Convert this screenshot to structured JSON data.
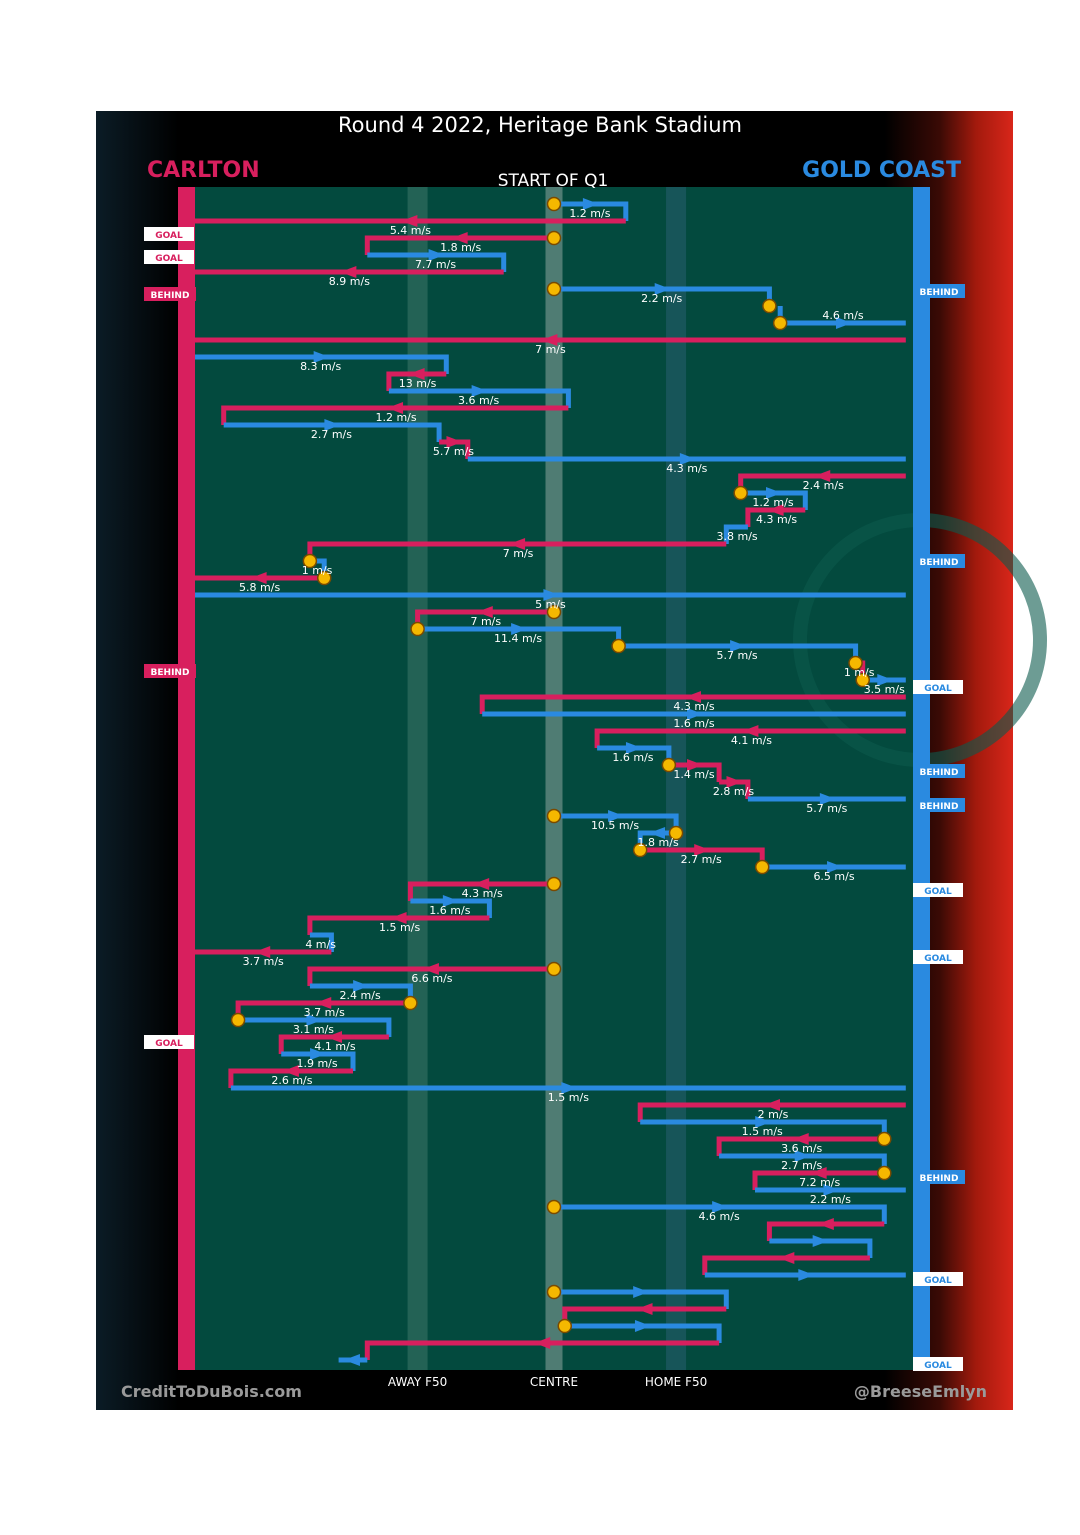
{
  "title": "Round 4 2022, Heritage Bank Stadium",
  "teams": {
    "left": "CARLTON",
    "right": "GOLD COAST"
  },
  "colors": {
    "left": "#d81f5e",
    "right": "#2a8ae0",
    "field": "#034a3e",
    "marker": "#f5b800"
  },
  "credits": {
    "left": "CreditToDuBois.com",
    "right": "@BreeseEmlyn"
  },
  "chart_data": {
    "type": "line",
    "title": "START OF Q1",
    "xlabel": "",
    "ylabel": "",
    "x_range": [
      0,
      100
    ],
    "x_ticks": [
      {
        "x": 31,
        "label": "AWAY F50"
      },
      {
        "x": 50,
        "label": "CENTRE"
      },
      {
        "x": 67,
        "label": "HOME F50"
      }
    ],
    "events": [
      {
        "x": 30,
        "label": "GOAL",
        "team": "left"
      },
      {
        "x": 53,
        "label": "GOAL",
        "team": "left"
      },
      {
        "x": 87,
        "label": "BEHIND",
        "team": "right"
      },
      {
        "x": 90,
        "label": "BEHIND",
        "team": "left"
      },
      {
        "x": 357,
        "label": "BEHIND",
        "team": "right"
      },
      {
        "x": 467,
        "label": "BEHIND",
        "team": "left"
      },
      {
        "x": 483,
        "label": "GOAL",
        "team": "right"
      },
      {
        "x": 567,
        "label": "BEHIND",
        "team": "right"
      },
      {
        "x": 601,
        "label": "BEHIND",
        "team": "right"
      },
      {
        "x": 686,
        "label": "GOAL",
        "team": "right"
      },
      {
        "x": 753,
        "label": "GOAL",
        "team": "right"
      },
      {
        "x": 838,
        "label": "GOAL",
        "team": "left"
      },
      {
        "x": 973,
        "label": "BEHIND",
        "team": "right"
      },
      {
        "x": 1075,
        "label": "GOAL",
        "team": "right"
      },
      {
        "x": 1160,
        "label": "GOAL",
        "team": "right"
      }
    ],
    "chains": [
      {
        "team": "right",
        "steps": [
          [
            50,
            0
          ],
          [
            60,
            0
          ],
          [
            60,
            17
          ],
          [
            60,
            17
          ]
        ]
      },
      {
        "team": "left",
        "steps": [
          [
            60,
            17
          ],
          [
            0,
            17
          ]
        ]
      },
      {
        "team": "left",
        "steps": [
          [
            50,
            34
          ],
          [
            24,
            34
          ],
          [
            24,
            51
          ]
        ]
      },
      {
        "team": "right",
        "steps": [
          [
            24,
            51
          ],
          [
            43,
            51
          ],
          [
            43,
            68
          ]
        ]
      },
      {
        "team": "left",
        "steps": [
          [
            43,
            68
          ],
          [
            0,
            68
          ]
        ]
      },
      {
        "team": "right",
        "steps": [
          [
            50,
            85
          ],
          [
            80,
            85
          ],
          [
            80,
            102
          ]
        ]
      },
      {
        "team": "right",
        "steps": [
          [
            81.5,
            102
          ],
          [
            81.5,
            119
          ],
          [
            99,
            119
          ]
        ]
      },
      {
        "team": "left",
        "steps": [
          [
            99,
            136
          ],
          [
            0,
            136
          ]
        ]
      },
      {
        "team": "right",
        "steps": [
          [
            0,
            153
          ],
          [
            35,
            153
          ],
          [
            35,
            170
          ]
        ]
      },
      {
        "team": "left",
        "steps": [
          [
            35,
            170
          ],
          [
            27,
            170
          ],
          [
            27,
            187
          ]
        ]
      },
      {
        "team": "right",
        "steps": [
          [
            27,
            187
          ],
          [
            52,
            187
          ],
          [
            52,
            204
          ]
        ]
      },
      {
        "team": "left",
        "steps": [
          [
            52,
            204
          ],
          [
            4,
            204
          ],
          [
            4,
            221
          ]
        ]
      },
      {
        "team": "right",
        "steps": [
          [
            4,
            221
          ],
          [
            34,
            221
          ],
          [
            34,
            238
          ]
        ]
      },
      {
        "team": "left",
        "steps": [
          [
            34,
            238
          ],
          [
            38,
            238
          ],
          [
            38,
            255
          ]
        ]
      },
      {
        "team": "right",
        "steps": [
          [
            38,
            255
          ],
          [
            99,
            255
          ]
        ]
      },
      {
        "team": "left",
        "steps": [
          [
            99,
            272
          ],
          [
            76,
            272
          ],
          [
            76,
            289
          ]
        ]
      },
      {
        "team": "right",
        "steps": [
          [
            76,
            289
          ],
          [
            85,
            289
          ],
          [
            85,
            306
          ]
        ]
      },
      {
        "team": "left",
        "steps": [
          [
            85,
            306
          ],
          [
            77,
            306
          ],
          [
            77,
            323
          ]
        ]
      },
      {
        "team": "right",
        "steps": [
          [
            77,
            323
          ],
          [
            74,
            323
          ],
          [
            74,
            340
          ]
        ]
      },
      {
        "team": "left",
        "steps": [
          [
            74,
            340
          ],
          [
            16,
            340
          ],
          [
            16,
            357
          ]
        ]
      },
      {
        "team": "right",
        "steps": [
          [
            16,
            357
          ],
          [
            18,
            357
          ],
          [
            18,
            374
          ]
        ]
      },
      {
        "team": "left",
        "steps": [
          [
            18,
            374
          ],
          [
            0,
            374
          ]
        ]
      },
      {
        "team": "right",
        "steps": [
          [
            0,
            391
          ],
          [
            99,
            391
          ]
        ]
      },
      {
        "team": "left",
        "steps": [
          [
            50,
            408
          ],
          [
            31,
            408
          ],
          [
            31,
            425
          ]
        ]
      },
      {
        "team": "right",
        "steps": [
          [
            31,
            425
          ],
          [
            59,
            425
          ],
          [
            59,
            442
          ]
        ]
      },
      {
        "team": "right",
        "steps": [
          [
            59,
            442
          ],
          [
            92,
            442
          ],
          [
            92,
            459
          ]
        ]
      },
      {
        "team": "left",
        "steps": [
          [
            92,
            459
          ],
          [
            93,
            459
          ],
          [
            93,
            476
          ]
        ]
      },
      {
        "team": "right",
        "steps": [
          [
            93,
            476
          ],
          [
            99,
            476
          ]
        ]
      },
      {
        "team": "left",
        "steps": [
          [
            99,
            493
          ],
          [
            40,
            493
          ],
          [
            40,
            510
          ]
        ]
      },
      {
        "team": "right",
        "steps": [
          [
            40,
            510
          ],
          [
            99,
            510
          ]
        ]
      },
      {
        "team": "left",
        "steps": [
          [
            99,
            527
          ],
          [
            56,
            527
          ],
          [
            56,
            544
          ]
        ]
      },
      {
        "team": "right",
        "steps": [
          [
            56,
            544
          ],
          [
            66,
            544
          ],
          [
            66,
            561
          ]
        ]
      },
      {
        "team": "left",
        "steps": [
          [
            66,
            561
          ],
          [
            73,
            561
          ],
          [
            73,
            578
          ]
        ]
      },
      {
        "team": "left",
        "steps": [
          [
            73,
            578
          ],
          [
            77,
            578
          ],
          [
            77,
            595
          ]
        ]
      },
      {
        "team": "right",
        "steps": [
          [
            77,
            595
          ],
          [
            99,
            595
          ]
        ]
      },
      {
        "team": "right",
        "steps": [
          [
            50,
            612
          ],
          [
            67,
            612
          ],
          [
            67,
            629
          ]
        ]
      },
      {
        "team": "right",
        "steps": [
          [
            67,
            629
          ],
          [
            62,
            629
          ],
          [
            62,
            646
          ]
        ]
      },
      {
        "team": "left",
        "steps": [
          [
            62,
            646
          ],
          [
            79,
            646
          ],
          [
            79,
            663
          ]
        ]
      },
      {
        "team": "right",
        "steps": [
          [
            79,
            663
          ],
          [
            99,
            663
          ]
        ]
      },
      {
        "team": "left",
        "steps": [
          [
            50,
            680
          ],
          [
            30,
            680
          ],
          [
            30,
            697
          ]
        ]
      },
      {
        "team": "right",
        "steps": [
          [
            30,
            697
          ],
          [
            41,
            697
          ],
          [
            41,
            714
          ]
        ]
      },
      {
        "team": "left",
        "steps": [
          [
            41,
            714
          ],
          [
            16,
            714
          ],
          [
            16,
            731
          ]
        ]
      },
      {
        "team": "right",
        "steps": [
          [
            16,
            731
          ],
          [
            19,
            731
          ],
          [
            19,
            748
          ]
        ]
      },
      {
        "team": "left",
        "steps": [
          [
            19,
            748
          ],
          [
            0,
            748
          ]
        ]
      },
      {
        "team": "left",
        "steps": [
          [
            50,
            765
          ],
          [
            16,
            765
          ],
          [
            16,
            782
          ]
        ]
      },
      {
        "team": "right",
        "steps": [
          [
            16,
            782
          ],
          [
            30,
            782
          ],
          [
            30,
            799
          ]
        ]
      },
      {
        "team": "left",
        "steps": [
          [
            30,
            799
          ],
          [
            6,
            799
          ],
          [
            6,
            816
          ]
        ]
      },
      {
        "team": "right",
        "steps": [
          [
            6,
            816
          ],
          [
            27,
            816
          ],
          [
            27,
            833
          ]
        ]
      },
      {
        "team": "left",
        "steps": [
          [
            27,
            833
          ],
          [
            12,
            833
          ],
          [
            12,
            850
          ]
        ]
      },
      {
        "team": "right",
        "steps": [
          [
            12,
            850
          ],
          [
            22,
            850
          ],
          [
            22,
            867
          ]
        ]
      },
      {
        "team": "left",
        "steps": [
          [
            22,
            867
          ],
          [
            5,
            867
          ],
          [
            5,
            884
          ]
        ]
      },
      {
        "team": "right",
        "steps": [
          [
            5,
            884
          ],
          [
            99,
            884
          ]
        ]
      },
      {
        "team": "left",
        "steps": [
          [
            99,
            901
          ],
          [
            62,
            901
          ],
          [
            62,
            918
          ]
        ]
      },
      {
        "team": "right",
        "steps": [
          [
            62,
            918
          ],
          [
            96,
            918
          ],
          [
            96,
            935
          ]
        ]
      },
      {
        "team": "left",
        "steps": [
          [
            96,
            935
          ],
          [
            73,
            935
          ],
          [
            73,
            952
          ]
        ]
      },
      {
        "team": "right",
        "steps": [
          [
            73,
            952
          ],
          [
            96,
            952
          ],
          [
            96,
            969
          ]
        ]
      },
      {
        "team": "left",
        "steps": [
          [
            96,
            969
          ],
          [
            78,
            969
          ],
          [
            78,
            986
          ]
        ]
      },
      {
        "team": "right",
        "steps": [
          [
            78,
            986
          ],
          [
            99,
            986
          ]
        ]
      },
      {
        "team": "right",
        "steps": [
          [
            50,
            1003
          ],
          [
            96,
            1003
          ],
          [
            96,
            1020
          ]
        ]
      },
      {
        "team": "left",
        "steps": [
          [
            96,
            1020
          ],
          [
            80,
            1020
          ],
          [
            80,
            1037
          ]
        ]
      },
      {
        "team": "right",
        "steps": [
          [
            80,
            1037
          ],
          [
            94,
            1037
          ],
          [
            94,
            1054
          ]
        ]
      },
      {
        "team": "left",
        "steps": [
          [
            94,
            1054
          ],
          [
            71,
            1054
          ],
          [
            71,
            1071
          ]
        ]
      },
      {
        "team": "right",
        "steps": [
          [
            71,
            1071
          ],
          [
            99,
            1071
          ]
        ]
      },
      {
        "team": "right",
        "steps": [
          [
            50,
            1088
          ],
          [
            74,
            1088
          ],
          [
            74,
            1105
          ]
        ]
      },
      {
        "team": "left",
        "steps": [
          [
            74,
            1105
          ],
          [
            51.5,
            1105
          ],
          [
            51.5,
            1122
          ]
        ]
      },
      {
        "team": "right",
        "steps": [
          [
            51.5,
            1122
          ],
          [
            73,
            1122
          ],
          [
            73,
            1139
          ]
        ]
      },
      {
        "team": "left",
        "steps": [
          [
            73,
            1139
          ],
          [
            24,
            1139
          ],
          [
            24,
            1156
          ]
        ]
      },
      {
        "team": "right",
        "steps": [
          [
            24,
            1156
          ],
          [
            20,
            1156
          ]
        ]
      }
    ],
    "speed_labels": [
      "1.2 m/s",
      "5.4 m/s",
      "1.8 m/s",
      "7.7 m/s",
      "8.9 m/s",
      "2.2 m/s",
      "4.6 m/s",
      "7 m/s",
      "8.3 m/s",
      "13 m/s",
      "3.6 m/s",
      "1.2 m/s",
      "2.7 m/s",
      "5.7 m/s",
      "4.3 m/s",
      "2.4 m/s",
      "1.2 m/s",
      "4.3 m/s",
      "3.8 m/s",
      "7 m/s",
      "1 m/s",
      "5.8 m/s",
      "5 m/s",
      "7 m/s",
      "11.4 m/s",
      "5.7 m/s",
      "1 m/s",
      "3.5 m/s",
      "4.3 m/s",
      "1.6 m/s",
      "4.1 m/s",
      "1.6 m/s",
      "1.4 m/s",
      "2.8 m/s",
      "5.7 m/s",
      "10.5 m/s",
      "1.8 m/s",
      "2.7 m/s",
      "6.5 m/s",
      "4.3 m/s",
      "1.6 m/s",
      "1.5 m/s",
      "4 m/s",
      "3.7 m/s",
      "6.6 m/s",
      "2.4 m/s",
      "3.7 m/s",
      "3.1 m/s",
      "4.1 m/s",
      "1.9 m/s",
      "2.6 m/s",
      "1.5 m/s",
      "2 m/s",
      "1.5 m/s",
      "3.6 m/s",
      "2.7 m/s",
      "7.2 m/s",
      "2.2 m/s",
      "4.6 m/s"
    ],
    "stoppages": [
      [
        50,
        0
      ],
      [
        50,
        34
      ],
      [
        50,
        85
      ],
      [
        80,
        102
      ],
      [
        81.5,
        119
      ],
      [
        76,
        289
      ],
      [
        16,
        357
      ],
      [
        18,
        374
      ],
      [
        50,
        408
      ],
      [
        31,
        425
      ],
      [
        59,
        442
      ],
      [
        92,
        459
      ],
      [
        93,
        476
      ],
      [
        66,
        561
      ],
      [
        50,
        612
      ],
      [
        67,
        629
      ],
      [
        62,
        646
      ],
      [
        79,
        663
      ],
      [
        50,
        680
      ],
      [
        50,
        765
      ],
      [
        30,
        799
      ],
      [
        6,
        816
      ],
      [
        96,
        935
      ],
      [
        96,
        969
      ],
      [
        50,
        1003
      ],
      [
        50,
        1088
      ],
      [
        51.5,
        1122
      ]
    ]
  }
}
